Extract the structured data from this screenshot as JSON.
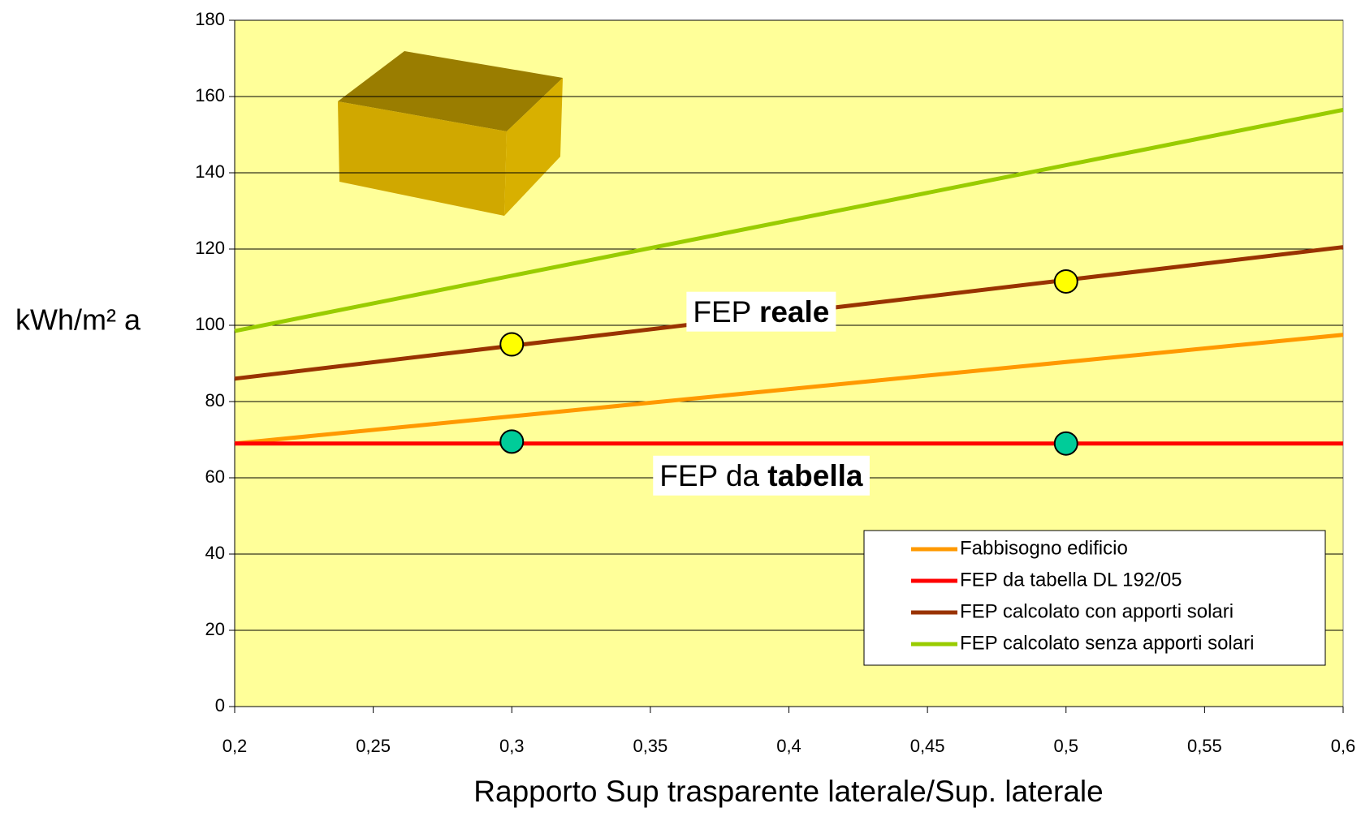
{
  "chart_data": {
    "type": "line",
    "y_label": "kWh/m² a",
    "x_label": "Rapporto Sup trasparente laterale/Sup. laterale",
    "x": [
      0.2,
      0.6
    ],
    "series": [
      {
        "name": "Fabbisogno edificio",
        "color": "#ff9900",
        "values": [
          69,
          97.5
        ]
      },
      {
        "name": "FEP da tabella DL 192/05",
        "color": "#ff0000",
        "values": [
          69,
          69
        ]
      },
      {
        "name": "FEP calcolato con apporti solari",
        "color": "#993300",
        "values": [
          86,
          120.5
        ]
      },
      {
        "name": "FEP calcolato senza apporti solari",
        "color": "#99cc00",
        "values": [
          98.5,
          156.5
        ]
      }
    ],
    "markers": [
      {
        "color": "#ffff00",
        "x": [
          0.3,
          0.5
        ],
        "values": [
          95,
          111.5
        ]
      },
      {
        "color": "#00cc99",
        "x": [
          0.3,
          0.5
        ],
        "values": [
          69.5,
          69
        ]
      }
    ],
    "annotations": [
      {
        "text": "FEP",
        "emphasis": "reale",
        "x": 0.39,
        "y": 103
      },
      {
        "text": "FEP da",
        "emphasis": "tabella",
        "x": 0.39,
        "y": 60
      }
    ],
    "xlim": [
      0.2,
      0.6
    ],
    "ylim": [
      0,
      180
    ],
    "xticks": [
      {
        "value": 0.2,
        "label": "0,2"
      },
      {
        "value": 0.25,
        "label": "0,25"
      },
      {
        "value": 0.3,
        "label": "0,3"
      },
      {
        "value": 0.35,
        "label": "0,35"
      },
      {
        "value": 0.4,
        "label": "0,4"
      },
      {
        "value": 0.45,
        "label": "0,45"
      },
      {
        "value": 0.5,
        "label": "0,5"
      },
      {
        "value": 0.55,
        "label": "0,55"
      },
      {
        "value": 0.6,
        "label": "0,6"
      }
    ],
    "yticks": [
      0,
      20,
      40,
      60,
      80,
      100,
      120,
      140,
      160,
      180
    ],
    "grid": true,
    "legend": "lower right",
    "background": "#ffff99"
  }
}
